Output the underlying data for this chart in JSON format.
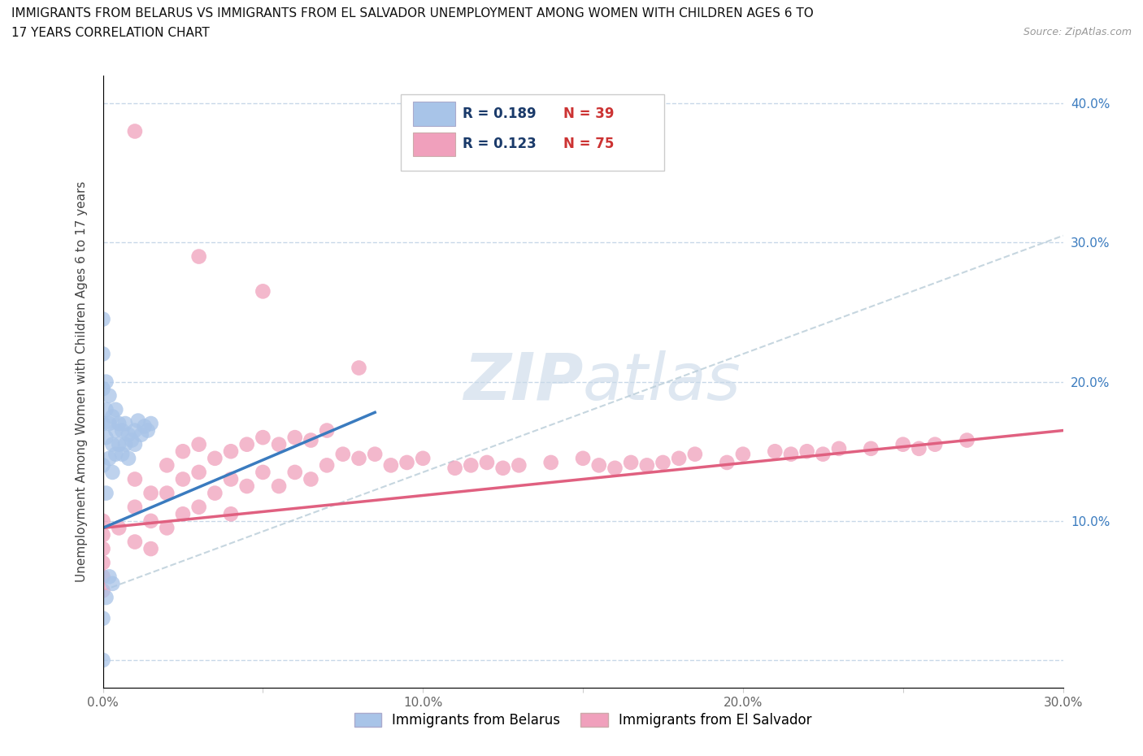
{
  "title_line1": "IMMIGRANTS FROM BELARUS VS IMMIGRANTS FROM EL SALVADOR UNEMPLOYMENT AMONG WOMEN WITH CHILDREN AGES 6 TO",
  "title_line2": "17 YEARS CORRELATION CHART",
  "source": "Source: ZipAtlas.com",
  "ylabel": "Unemployment Among Women with Children Ages 6 to 17 years",
  "xlim": [
    0.0,
    0.3
  ],
  "ylim": [
    -0.02,
    0.42
  ],
  "xticks": [
    0.0,
    0.05,
    0.1,
    0.15,
    0.2,
    0.25,
    0.3
  ],
  "yticks": [
    0.0,
    0.1,
    0.2,
    0.3,
    0.4
  ],
  "xtick_labels": [
    "0.0%",
    "",
    "10.0%",
    "",
    "20.0%",
    "",
    "30.0%"
  ],
  "ytick_labels_left": [
    "",
    "",
    "",
    "",
    ""
  ],
  "right_ytick_labels": [
    "10.0%",
    "20.0%",
    "30.0%",
    "40.0%"
  ],
  "right_ytick_positions": [
    0.1,
    0.2,
    0.3,
    0.4
  ],
  "belarus_R": 0.189,
  "belarus_N": 39,
  "salvador_R": 0.123,
  "salvador_N": 75,
  "belarus_color": "#a8c4e8",
  "salvador_color": "#f0a0bc",
  "belarus_line_color": "#3a7bbf",
  "salvador_line_color": "#e06080",
  "grid_line_color": "#c8d8e8",
  "ref_line_color": "#b8ccd8",
  "watermark_color": "#c8d8e8",
  "legend_border_color": "#cccccc",
  "legend_text_color": "#1a3a6a",
  "legend_N_color": "#cc3333",
  "legend_belarus_label": "Immigrants from Belarus",
  "legend_salvador_label": "Immigrants from El Salvador",
  "bel_x": [
    0.0,
    0.0,
    0.0,
    0.0,
    0.0,
    0.001,
    0.001,
    0.001,
    0.001,
    0.002,
    0.002,
    0.002,
    0.003,
    0.003,
    0.003,
    0.004,
    0.004,
    0.004,
    0.005,
    0.005,
    0.006,
    0.006,
    0.007,
    0.007,
    0.008,
    0.008,
    0.009,
    0.01,
    0.01,
    0.011,
    0.012,
    0.013,
    0.014,
    0.015,
    0.0,
    0.001,
    0.002,
    0.003,
    0.0
  ],
  "bel_y": [
    0.245,
    0.22,
    0.195,
    0.17,
    0.14,
    0.2,
    0.18,
    0.16,
    0.12,
    0.19,
    0.17,
    0.145,
    0.175,
    0.155,
    0.135,
    0.18,
    0.165,
    0.148,
    0.17,
    0.155,
    0.165,
    0.148,
    0.17,
    0.155,
    0.162,
    0.145,
    0.158,
    0.165,
    0.155,
    0.172,
    0.162,
    0.168,
    0.165,
    0.17,
    0.03,
    0.045,
    0.06,
    0.055,
    0.0
  ],
  "sal_x": [
    0.0,
    0.0,
    0.0,
    0.0,
    0.0,
    0.0,
    0.005,
    0.01,
    0.01,
    0.01,
    0.015,
    0.015,
    0.015,
    0.02,
    0.02,
    0.02,
    0.025,
    0.025,
    0.025,
    0.03,
    0.03,
    0.03,
    0.035,
    0.035,
    0.04,
    0.04,
    0.04,
    0.045,
    0.045,
    0.05,
    0.05,
    0.055,
    0.055,
    0.06,
    0.06,
    0.065,
    0.065,
    0.07,
    0.07,
    0.075,
    0.08,
    0.085,
    0.09,
    0.095,
    0.1,
    0.11,
    0.115,
    0.12,
    0.125,
    0.13,
    0.14,
    0.15,
    0.155,
    0.16,
    0.165,
    0.17,
    0.175,
    0.18,
    0.185,
    0.195,
    0.2,
    0.21,
    0.215,
    0.22,
    0.225,
    0.23,
    0.24,
    0.25,
    0.255,
    0.26,
    0.27,
    0.01,
    0.03,
    0.05,
    0.08
  ],
  "sal_y": [
    0.1,
    0.09,
    0.08,
    0.07,
    0.06,
    0.05,
    0.095,
    0.13,
    0.11,
    0.085,
    0.12,
    0.1,
    0.08,
    0.14,
    0.12,
    0.095,
    0.15,
    0.13,
    0.105,
    0.155,
    0.135,
    0.11,
    0.145,
    0.12,
    0.15,
    0.13,
    0.105,
    0.155,
    0.125,
    0.16,
    0.135,
    0.155,
    0.125,
    0.16,
    0.135,
    0.158,
    0.13,
    0.165,
    0.14,
    0.148,
    0.145,
    0.148,
    0.14,
    0.142,
    0.145,
    0.138,
    0.14,
    0.142,
    0.138,
    0.14,
    0.142,
    0.145,
    0.14,
    0.138,
    0.142,
    0.14,
    0.142,
    0.145,
    0.148,
    0.142,
    0.148,
    0.15,
    0.148,
    0.15,
    0.148,
    0.152,
    0.152,
    0.155,
    0.152,
    0.155,
    0.158,
    0.38,
    0.29,
    0.265,
    0.21
  ]
}
